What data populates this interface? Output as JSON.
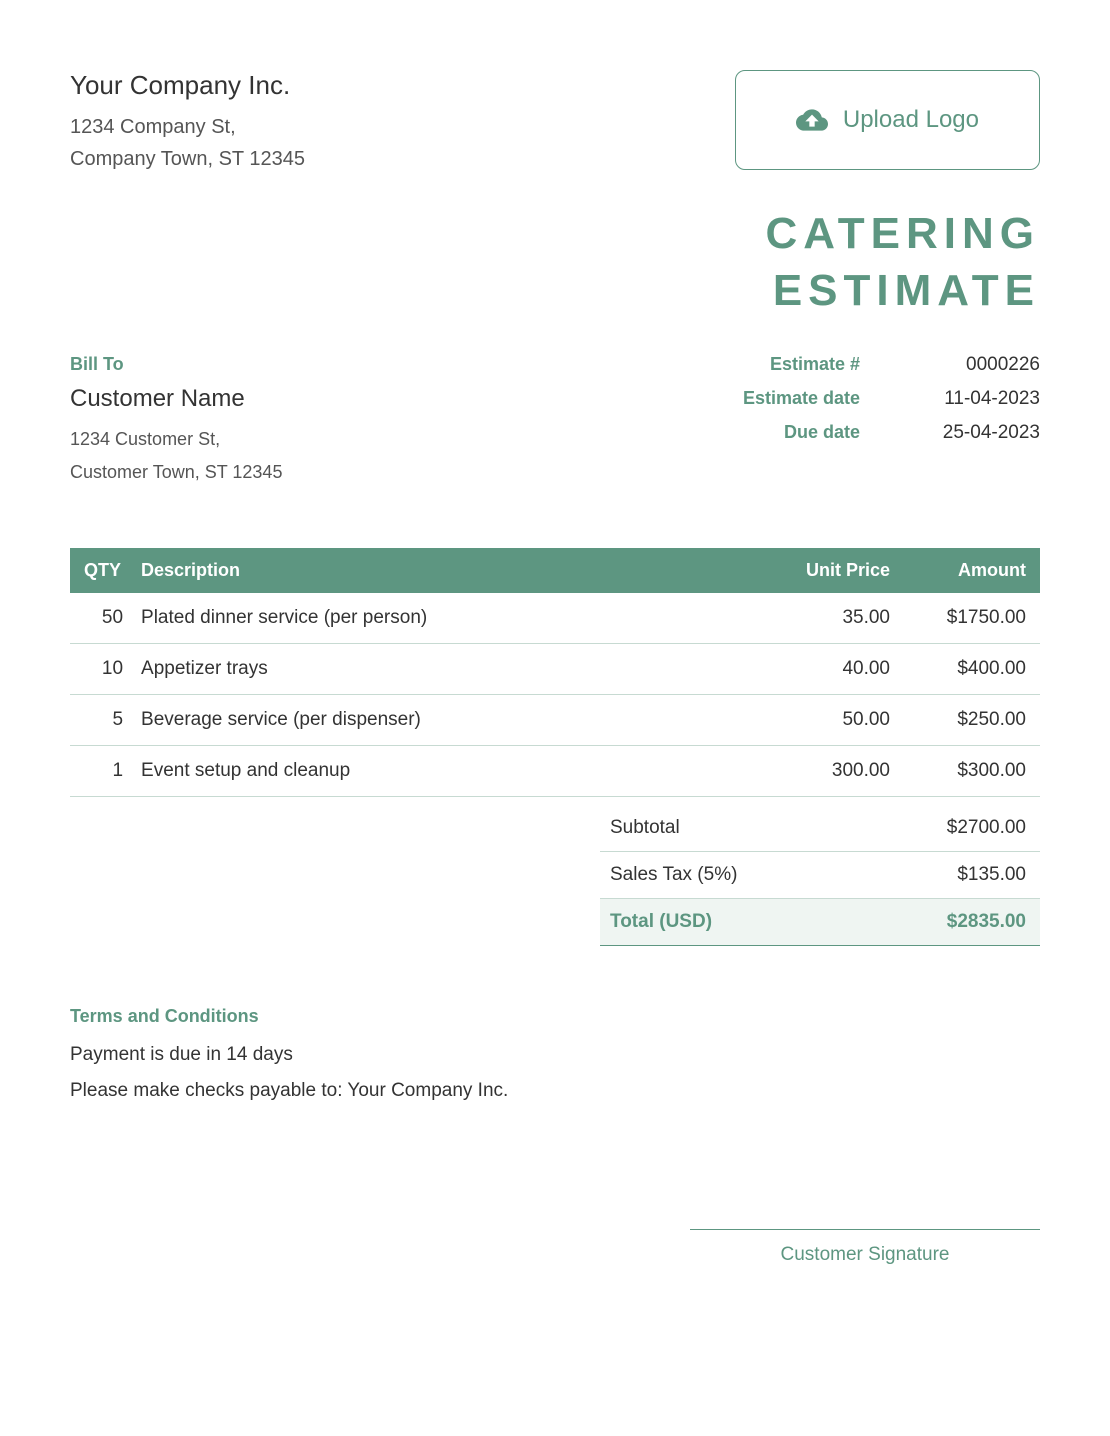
{
  "colors": {
    "accent": "#5d9681",
    "text": "#333333",
    "text_light": "#555555",
    "row_border": "#c7dad2",
    "total_bg": "#eff5f2",
    "background": "#ffffff"
  },
  "company": {
    "name": "Your Company Inc.",
    "address_line1": "1234 Company St,",
    "address_line2": "Company Town, ST 12345"
  },
  "upload_logo": {
    "label": "Upload Logo"
  },
  "doc_title_line1": "CATERING",
  "doc_title_line2": "ESTIMATE",
  "bill_to": {
    "label": "Bill To",
    "name": "Customer Name",
    "address_line1": "1234 Customer St,",
    "address_line2": "Customer Town, ST 12345"
  },
  "meta": {
    "estimate_number_label": "Estimate #",
    "estimate_number_value": "0000226",
    "estimate_date_label": "Estimate date",
    "estimate_date_value": "11-04-2023",
    "due_date_label": "Due date",
    "due_date_value": "25-04-2023"
  },
  "table": {
    "headers": {
      "qty": "QTY",
      "description": "Description",
      "unit_price": "Unit Price",
      "amount": "Amount"
    },
    "rows": [
      {
        "qty": "50",
        "description": "Plated dinner service (per person)",
        "unit_price": "35.00",
        "amount": "$1750.00"
      },
      {
        "qty": "10",
        "description": "Appetizer trays",
        "unit_price": "40.00",
        "amount": "$400.00"
      },
      {
        "qty": "5",
        "description": "Beverage service (per dispenser)",
        "unit_price": "50.00",
        "amount": "$250.00"
      },
      {
        "qty": "1",
        "description": "Event setup and cleanup",
        "unit_price": "300.00",
        "amount": "$300.00"
      }
    ]
  },
  "totals": {
    "subtotal_label": "Subtotal",
    "subtotal_value": "$2700.00",
    "tax_label": "Sales Tax (5%)",
    "tax_value": "$135.00",
    "total_label": "Total (USD)",
    "total_value": "$2835.00"
  },
  "terms": {
    "label": "Terms and Conditions",
    "line1": "Payment is due in 14 days",
    "line2": "Please make checks payable to: Your Company Inc."
  },
  "signature": {
    "label": "Customer Signature"
  }
}
